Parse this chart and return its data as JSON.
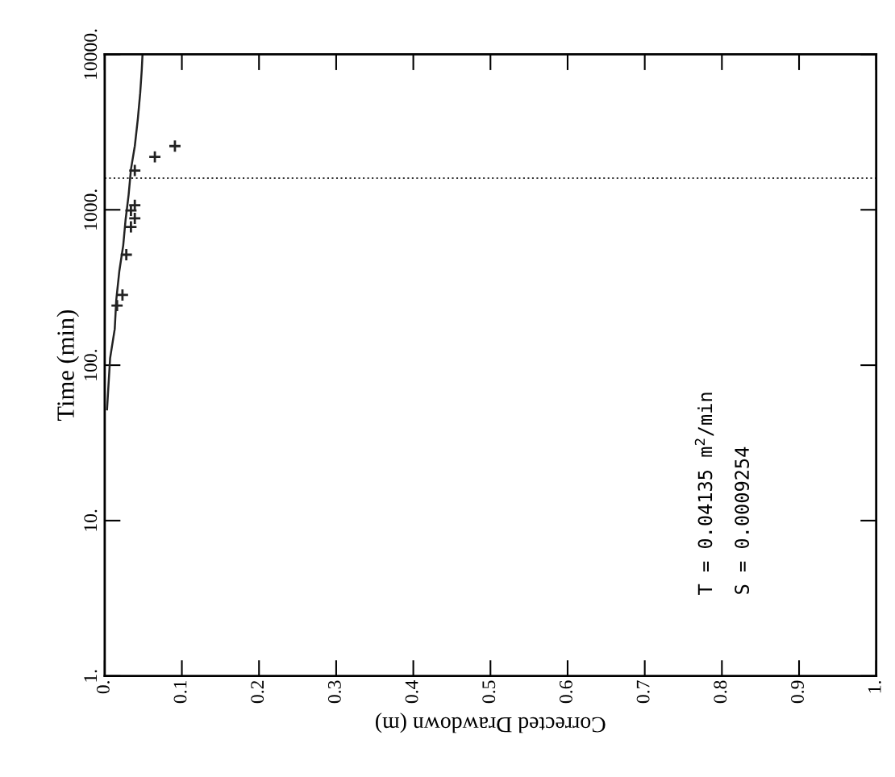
{
  "chart_data": {
    "type": "line",
    "xlabel": "Corrected Drawdown (m)",
    "ylabel": "Time (min)",
    "xlim": [
      0,
      1
    ],
    "ylim": [
      1,
      10000
    ],
    "log": "y",
    "xticks": [
      {
        "value": 0,
        "label": "0."
      },
      0.1,
      0.2,
      0.3,
      0.4,
      0.5,
      0.6,
      0.7,
      0.8,
      0.9,
      {
        "value": 1,
        "label": "1."
      }
    ],
    "yticks": [
      {
        "value": 1,
        "label": "1."
      },
      {
        "value": 10,
        "label": "10."
      },
      {
        "value": 100,
        "label": "100."
      },
      {
        "value": 1000,
        "label": "1000."
      },
      {
        "value": 10000,
        "label": "10000."
      }
    ],
    "grid": false,
    "legend": false,
    "series": [
      {
        "type": "line",
        "color": "#222222",
        "marker": "none",
        "line_style": "solid",
        "x": [
          0.003,
          0.007,
          0.013,
          0.015,
          0.019,
          0.024,
          0.027,
          0.031,
          0.034,
          0.039,
          0.043,
          0.046,
          0.048,
          0.049
        ],
        "values": [
          52,
          111,
          171,
          264,
          405,
          591,
          859,
          1250,
          1820,
          2570,
          3870,
          5640,
          7920,
          10000
        ]
      },
      {
        "type": "scatter",
        "color": "#222222",
        "marker": "cross",
        "x": [
          0.091,
          0.065,
          0.039,
          0.039,
          0.034,
          0.039,
          0.034,
          0.028,
          0.023,
          0.016
        ],
        "values": [
          2570,
          2190,
          1790,
          1070,
          990,
          880,
          776,
          514,
          283,
          242
        ]
      }
    ],
    "ref_lines": [
      {
        "axis": "y",
        "value": 1600,
        "color": "#333333",
        "line_style": "dotted"
      }
    ],
    "annotations": [
      "T = 0.04135 m$^{2}$/min",
      "S = 0.0009254"
    ]
  }
}
